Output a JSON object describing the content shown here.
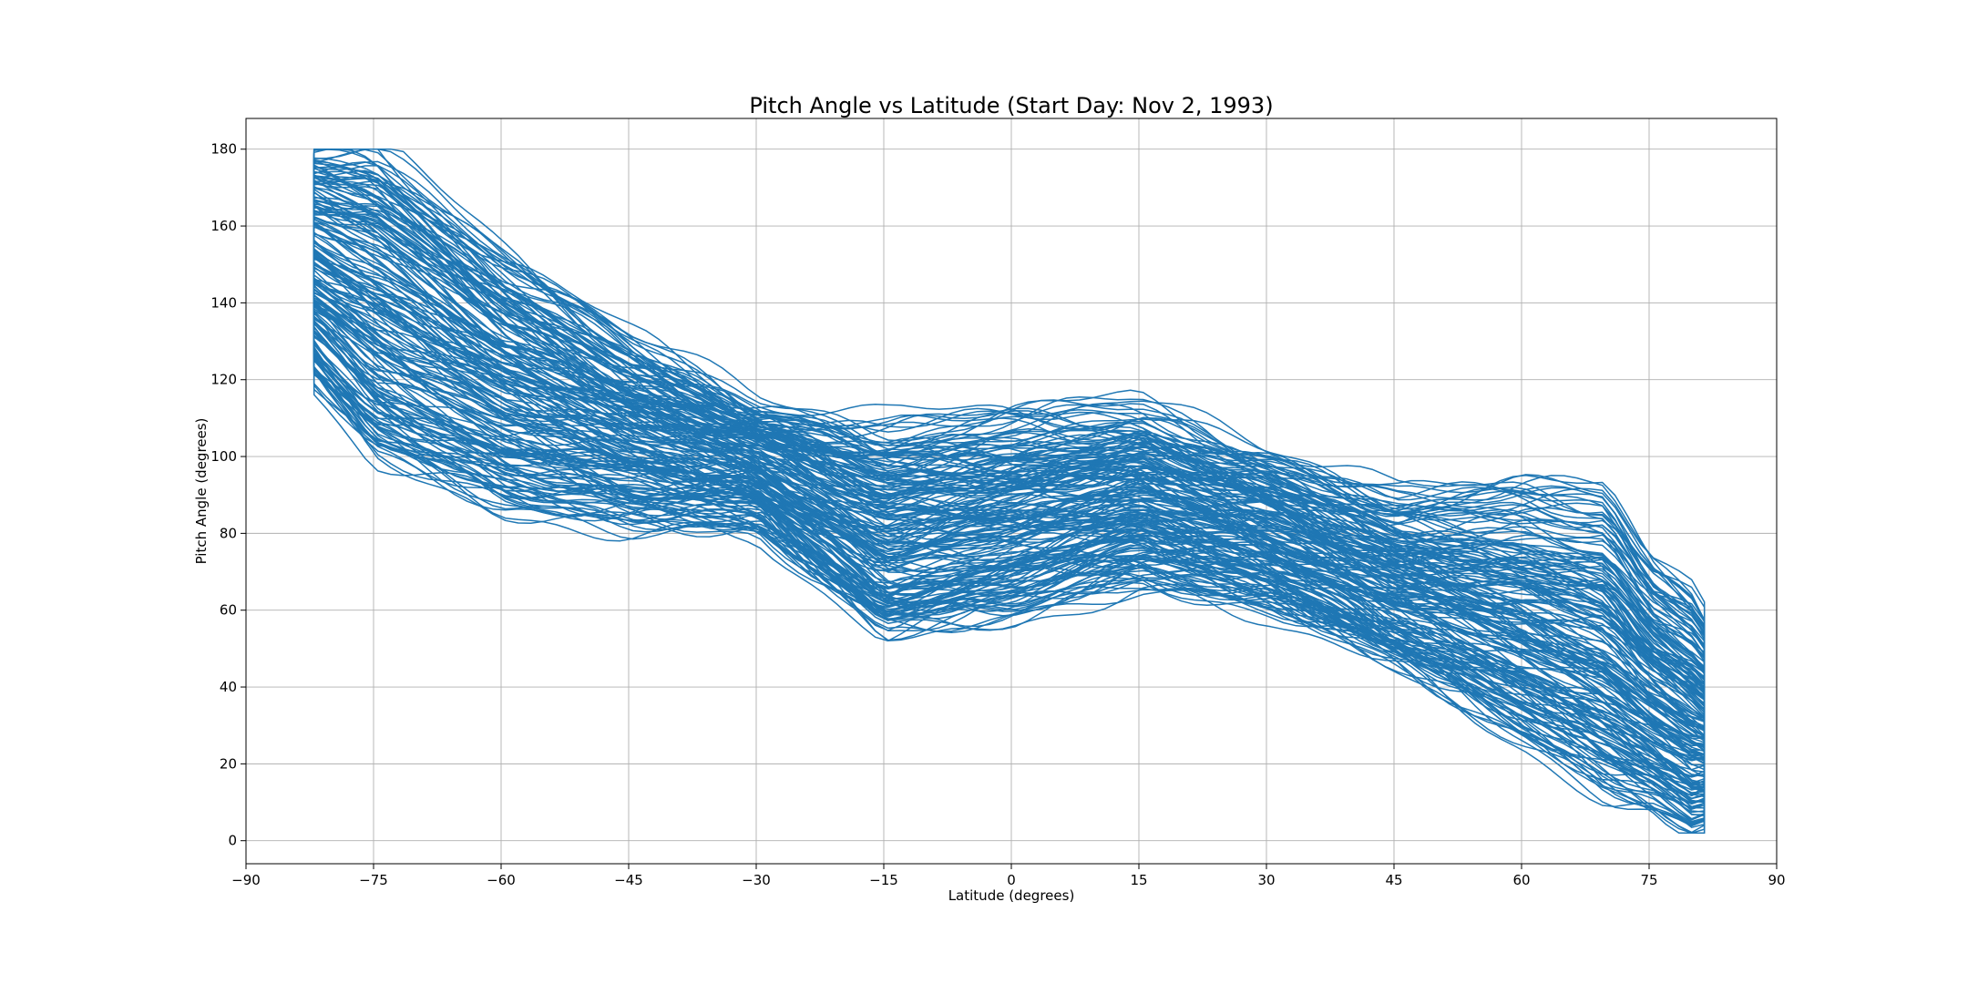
{
  "chart_data": {
    "type": "line",
    "title": "Pitch Angle vs Latitude (Start Day: Nov 2, 1993)",
    "xlabel": "Latitude (degrees)",
    "ylabel": "Pitch Angle (degrees)",
    "xlim": [
      -90,
      90
    ],
    "ylim": [
      -6,
      188
    ],
    "xticks": [
      -90,
      -75,
      -60,
      -45,
      -30,
      -15,
      0,
      15,
      30,
      45,
      60,
      75,
      90
    ],
    "yticks": [
      0,
      20,
      40,
      60,
      80,
      100,
      120,
      140,
      160,
      180
    ],
    "grid": true,
    "legend": "none",
    "line_color": "#1f77b4",
    "trace_count": 200,
    "latitude_range": [
      -82,
      82
    ],
    "series_envelope": {
      "description_free_keypoints": true,
      "latitude": [
        -82,
        -75,
        -60,
        -45,
        -30,
        -15,
        0,
        15,
        30,
        45,
        60,
        70,
        75,
        80,
        82
      ],
      "upper_pitch": [
        180,
        180,
        152,
        130,
        113,
        107,
        110,
        112,
        100,
        88,
        90,
        88,
        70,
        62,
        55
      ],
      "lower_pitch": [
        120,
        100,
        87,
        83,
        83,
        54,
        59,
        68,
        62,
        47,
        27,
        13,
        10,
        3,
        5
      ]
    },
    "notable_features": {
      "vertical_cluster_at_latitude": -82,
      "vertical_cluster_range": [
        120,
        180
      ],
      "vertical_cluster_at_latitude_north": 81.5,
      "vertical_cluster_range_north": [
        5,
        55
      ]
    }
  }
}
